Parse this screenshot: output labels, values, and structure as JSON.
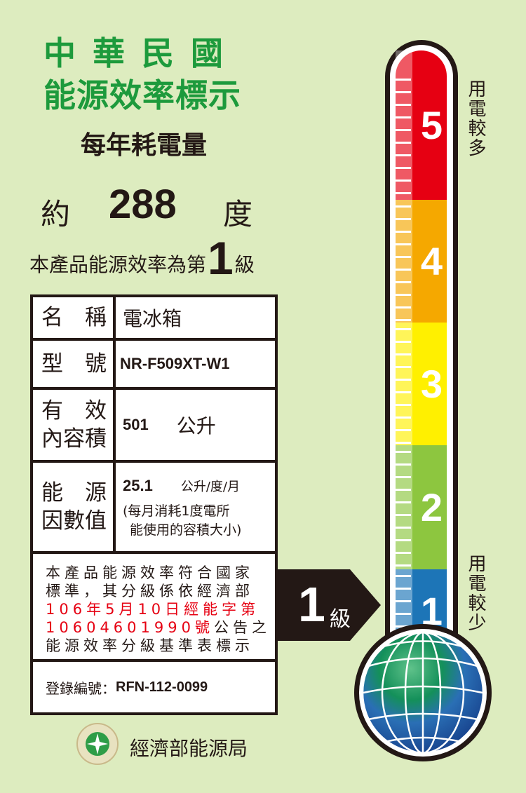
{
  "header": {
    "line1": "中華民國",
    "line2": "能源效率標示",
    "subtitle": "每年耗電量"
  },
  "consumption": {
    "prefix": "約",
    "value": "288",
    "unit": "度"
  },
  "grade_line": {
    "prefix": "本產品能源效率為第",
    "grade": "1",
    "suffix": "級"
  },
  "table": {
    "name_label": "名　稱",
    "name_value": "電冰箱",
    "model_label": "型　號",
    "model_value": "NR-F509XT-W1",
    "volume_label_1": "有　效",
    "volume_label_2": "內容積",
    "volume_value": "501",
    "volume_unit": "公升",
    "factor_label_1": "能　源",
    "factor_label_2": "因數值",
    "factor_value": "25.1",
    "factor_unit": "公升/度/月",
    "factor_note_1": "(每月消耗1度電所",
    "factor_note_2": "能使用的容積大小)",
    "statement": {
      "l1": "本產品能源效率符合國家",
      "l2": "標準，其分級係依經濟部",
      "l3": "106年5月10日經能字第",
      "l4a": "10604601990號",
      "l4b": "公告之",
      "l5": "能源效率分級基準表標示"
    },
    "reg_label": "登錄編號：",
    "reg_value": "RFN-112-0099"
  },
  "arrow": {
    "grade": "1",
    "suffix": "級"
  },
  "thermometer": {
    "levels": [
      {
        "label": "5",
        "color": "#e60012"
      },
      {
        "label": "4",
        "color": "#f5a800"
      },
      {
        "label": "3",
        "color": "#fff000"
      },
      {
        "label": "2",
        "color": "#8dc63f"
      },
      {
        "label": "1",
        "color": "#1d75b7"
      }
    ],
    "top_label": "用電較多",
    "bottom_label": "用電較少"
  },
  "footer": {
    "agency": "經濟部能源局",
    "logo_text": "經濟部能源局 BUREAU OF ENERGY"
  }
}
